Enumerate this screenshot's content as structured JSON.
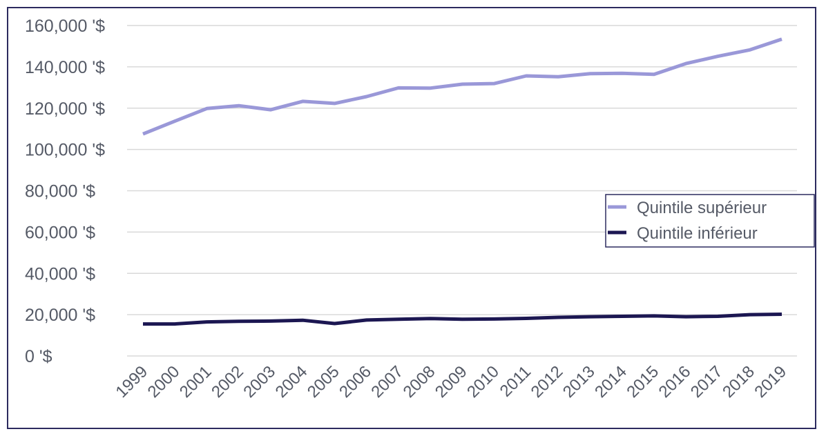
{
  "chart_data": {
    "type": "line",
    "title": "",
    "xlabel": "",
    "ylabel": "",
    "categories": [
      "1999",
      "2000",
      "2001",
      "2002",
      "2003",
      "2004",
      "2005",
      "2006",
      "2007",
      "2008",
      "2009",
      "2010",
      "2011",
      "2012",
      "2013",
      "2014",
      "2015",
      "2016",
      "2017",
      "2018",
      "2019"
    ],
    "y_ticks": [
      "0 '$",
      "20,000 '$",
      "40,000 '$",
      "60,000 '$",
      "80,000 '$",
      "100,000 '$",
      "120,000 '$",
      "140,000 '$",
      "160,000 '$"
    ],
    "ylim": [
      0,
      160000
    ],
    "grid": true,
    "legend_position": "right",
    "series": [
      {
        "name": "Quintile supérieur",
        "color": "#9a98d8",
        "values": [
          107500,
          113700,
          119800,
          121200,
          119200,
          123300,
          122300,
          125600,
          129800,
          129700,
          131600,
          131900,
          135600,
          135200,
          136700,
          136900,
          136400,
          141600,
          145100,
          148200,
          153400
        ]
      },
      {
        "name": "Quintile inférieur",
        "color": "#1c1752",
        "values": [
          15500,
          15500,
          16500,
          16800,
          16900,
          17300,
          15700,
          17400,
          17800,
          18100,
          17800,
          17900,
          18200,
          18700,
          19000,
          19200,
          19400,
          19000,
          19200,
          20000,
          20200
        ]
      }
    ]
  }
}
